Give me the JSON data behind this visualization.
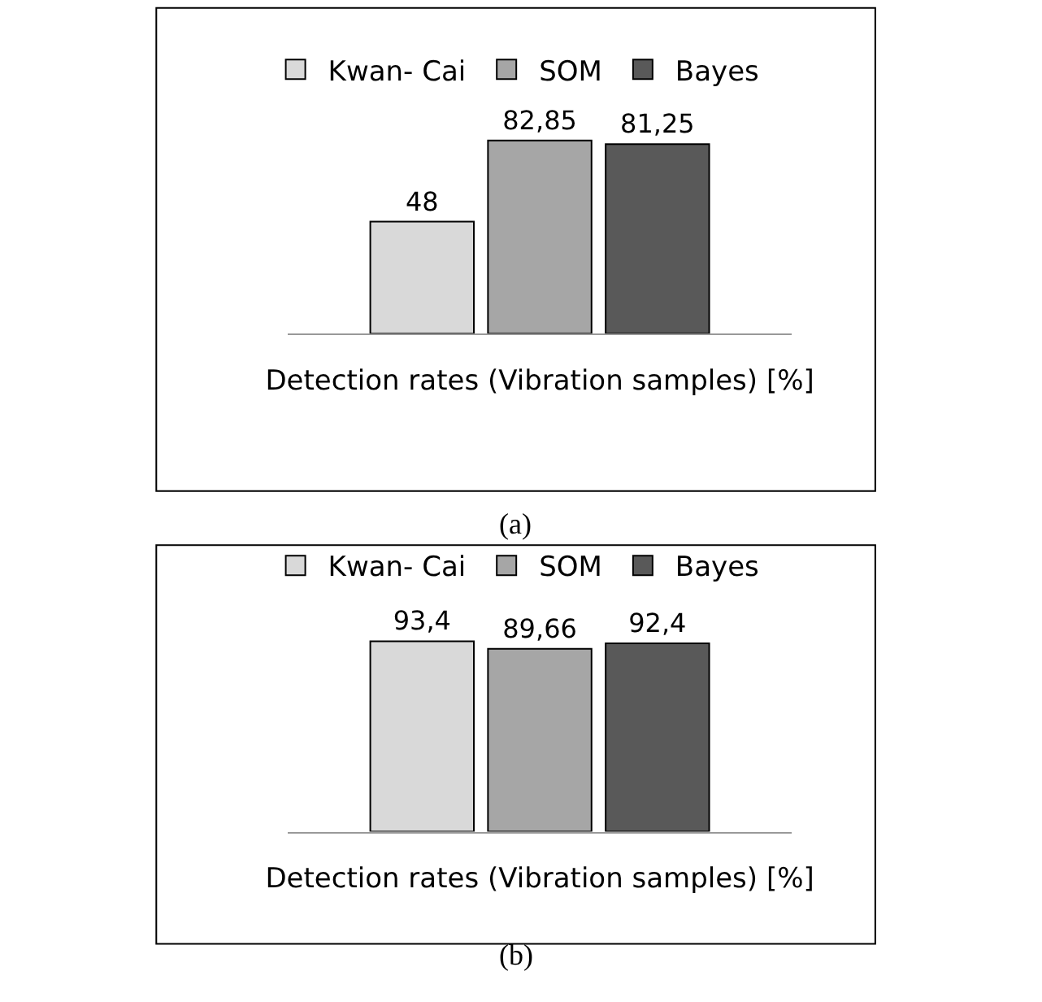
{
  "chart_data": [
    {
      "type": "bar",
      "categories": [
        null
      ],
      "xlabel": "Detection rates (Vibration samples) [%]",
      "tick_labels": false,
      "legend": "top",
      "annotations": [
        "(a)"
      ],
      "series": [
        {
          "name": "Kwan- Cai",
          "color": "#d9d9d9",
          "values": [
            48
          ],
          "value_labels": [
            "48"
          ]
        },
        {
          "name": "SOM",
          "color": "#a6a6a6",
          "values": [
            82.85
          ],
          "value_labels": [
            "82,85"
          ]
        },
        {
          "name": "Bayes",
          "color": "#595959",
          "values": [
            81.25
          ],
          "value_labels": [
            "81,25"
          ]
        }
      ]
    },
    {
      "type": "bar",
      "categories": [
        null
      ],
      "xlabel": "Detection rates (Vibration samples) [%]",
      "tick_labels": false,
      "legend": "top",
      "annotations": [
        "(b)"
      ],
      "series": [
        {
          "name": "Kwan- Cai",
          "color": "#d9d9d9",
          "values": [
            93.4
          ],
          "value_labels": [
            "93,4"
          ]
        },
        {
          "name": "SOM",
          "color": "#a6a6a6",
          "values": [
            89.66
          ],
          "value_labels": [
            "89,66"
          ]
        },
        {
          "name": "Bayes",
          "color": "#595959",
          "values": [
            92.4
          ],
          "value_labels": [
            "92,4"
          ]
        }
      ]
    }
  ]
}
